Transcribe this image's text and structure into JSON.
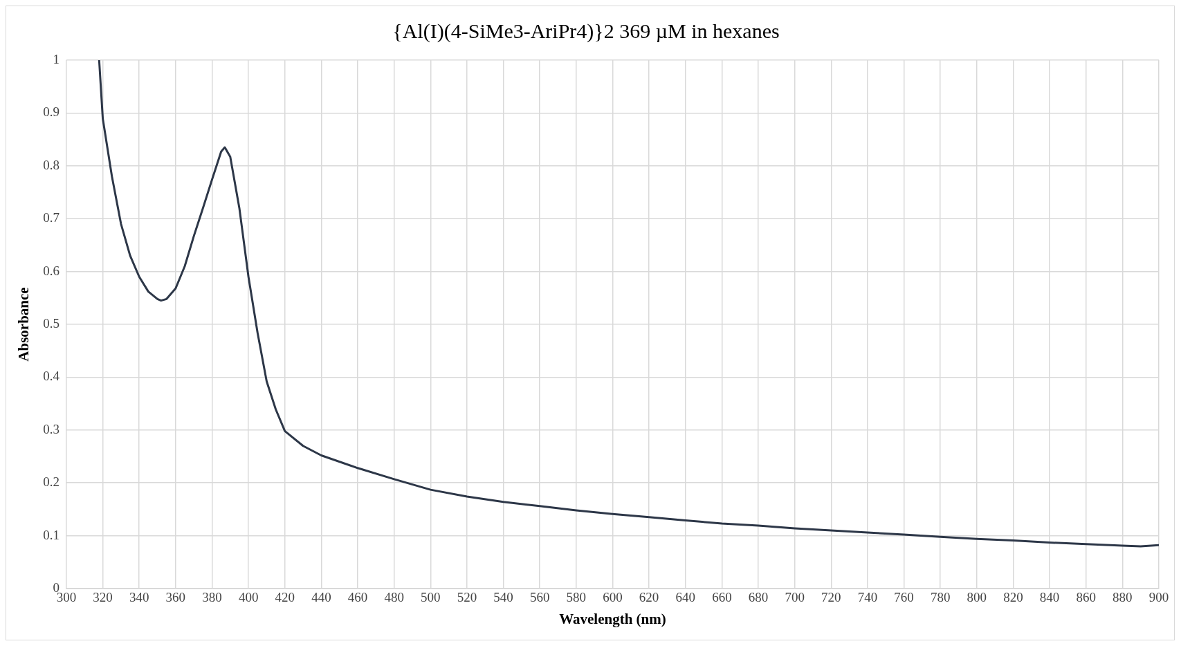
{
  "chart_data": {
    "type": "line",
    "title": "{Al(I)(4-SiMe3-AriPr4)}2 369 µM in hexanes",
    "xlabel": "Wavelength (nm)",
    "ylabel": "Absorbance",
    "x": [
      318,
      320,
      325,
      330,
      335,
      340,
      345,
      350,
      352,
      355,
      360,
      365,
      370,
      375,
      380,
      385,
      387,
      390,
      395,
      400,
      405,
      410,
      415,
      420,
      430,
      440,
      460,
      480,
      500,
      520,
      540,
      560,
      580,
      600,
      620,
      640,
      660,
      680,
      700,
      720,
      740,
      760,
      780,
      800,
      820,
      840,
      860,
      880,
      890,
      900
    ],
    "series": [
      {
        "color": "#2d3748",
        "values": [
          1,
          0.889,
          0.78,
          0.69,
          0.63,
          0.59,
          0.562,
          0.548,
          0.545,
          0.548,
          0.568,
          0.61,
          0.667,
          0.72,
          0.774,
          0.827,
          0.835,
          0.817,
          0.72,
          0.59,
          0.484,
          0.392,
          0.339,
          0.298,
          0.27,
          0.252,
          0.228,
          0.207,
          0.187,
          0.174,
          0.164,
          0.156,
          0.148,
          0.141,
          0.135,
          0.129,
          0.123,
          0.119,
          0.114,
          0.11,
          0.106,
          0.102,
          0.098,
          0.094,
          0.091,
          0.087,
          0.084,
          0.081,
          0.08,
          0.082
        ]
      }
    ],
    "xlim": [
      300,
      900
    ],
    "xticks": [
      300,
      320,
      340,
      360,
      380,
      400,
      420,
      440,
      460,
      480,
      500,
      520,
      540,
      560,
      580,
      600,
      620,
      640,
      660,
      680,
      700,
      720,
      740,
      760,
      780,
      800,
      820,
      840,
      860,
      880,
      900
    ],
    "ylim": [
      0,
      1
    ],
    "yticks": [
      0,
      0.1,
      0.2,
      0.3,
      0.4,
      0.5,
      0.6,
      0.7,
      0.8,
      0.9,
      1
    ],
    "grid": true,
    "legend": false,
    "marker": "none",
    "line_style": "solid"
  }
}
